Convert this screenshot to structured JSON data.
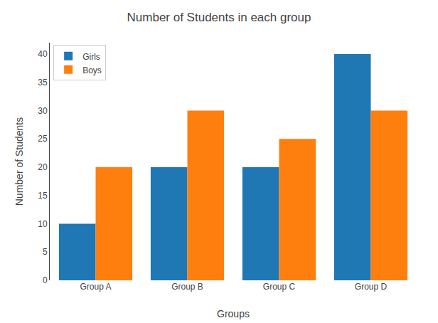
{
  "chart_data": {
    "type": "bar",
    "title": "Number of Students in each group",
    "xlabel": "Groups",
    "ylabel": "Number of Students",
    "categories": [
      "Group A",
      "Group B",
      "Group C",
      "Group D"
    ],
    "series": [
      {
        "name": "Girls",
        "color": "#1f77b4",
        "values": [
          10,
          20,
          20,
          40
        ]
      },
      {
        "name": "Boys",
        "color": "#ff7f0e",
        "values": [
          20,
          30,
          25,
          30
        ]
      }
    ],
    "ylim": [
      0,
      42
    ],
    "yticks": [
      0,
      5,
      10,
      15,
      20,
      25,
      30,
      35,
      40
    ],
    "grid": false,
    "legend": "upper left"
  }
}
